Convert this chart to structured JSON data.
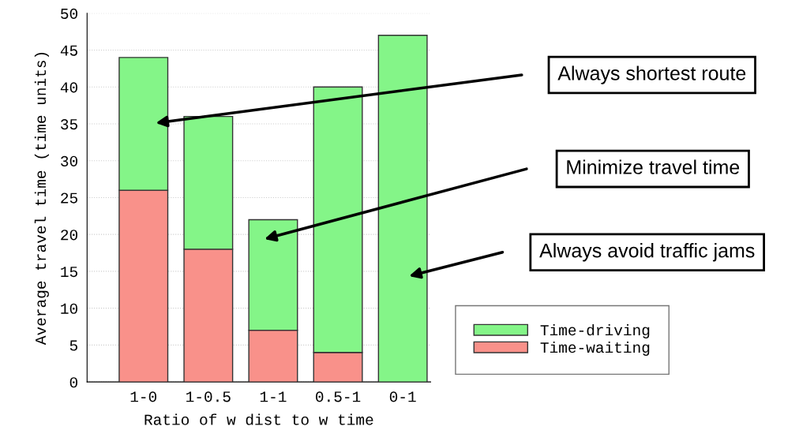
{
  "chart_data": {
    "type": "bar",
    "stacked": true,
    "xlabel": "Ratio of w dist to w time",
    "ylabel": "Average travel time (time units)",
    "categories": [
      "1-0",
      "1-0.5",
      "1-1",
      "0.5-1",
      "0-1"
    ],
    "series": [
      {
        "name": "Time-waiting",
        "color": "#f9918a",
        "values": [
          26,
          18,
          7,
          4,
          0
        ]
      },
      {
        "name": "Time-driving",
        "color": "#84f588",
        "values": [
          18,
          18,
          15,
          36,
          47
        ]
      }
    ],
    "ylim": [
      0,
      50
    ],
    "yticks": [
      0,
      5,
      10,
      15,
      20,
      25,
      30,
      35,
      40,
      45,
      50
    ],
    "grid": "y",
    "legend": "bottom right",
    "annotations": [
      "Always shortest route",
      "Minimize travel time",
      "Always avoid traffic jams"
    ]
  }
}
